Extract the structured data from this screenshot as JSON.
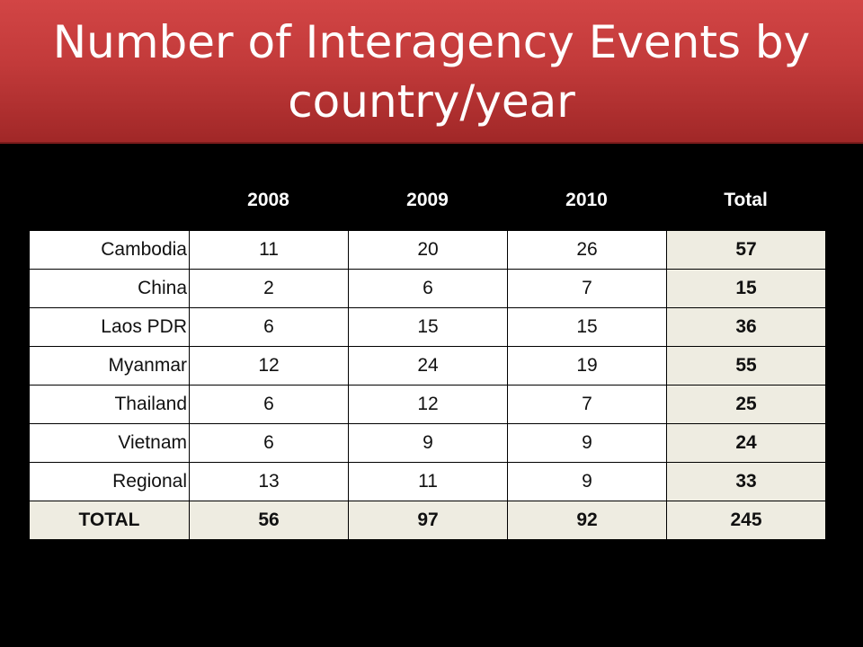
{
  "title": "Number of Interagency Events by country/year",
  "colors": {
    "title_bar": "#c23a3a",
    "background": "#000000",
    "total_cell": "#eeece1"
  },
  "chart_data": {
    "type": "table",
    "columns": [
      "2008",
      "2009",
      "2010",
      "Total"
    ],
    "rows": [
      {
        "label": "Cambodia",
        "values": [
          "11",
          "20",
          "26",
          "57"
        ]
      },
      {
        "label": "China",
        "values": [
          "2",
          "6",
          "7",
          "15"
        ]
      },
      {
        "label": "Laos PDR",
        "values": [
          "6",
          "15",
          "15",
          "36"
        ]
      },
      {
        "label": "Myanmar",
        "values": [
          "12",
          "24",
          "19",
          "55"
        ]
      },
      {
        "label": "Thailand",
        "values": [
          "6",
          "12",
          "7",
          "25"
        ]
      },
      {
        "label": "Vietnam",
        "values": [
          "6",
          "9",
          "9",
          "24"
        ]
      },
      {
        "label": "Regional",
        "values": [
          "13",
          "11",
          "9",
          "33"
        ]
      },
      {
        "label": "TOTAL",
        "values": [
          "56",
          "97",
          "92",
          "245"
        ]
      }
    ]
  }
}
